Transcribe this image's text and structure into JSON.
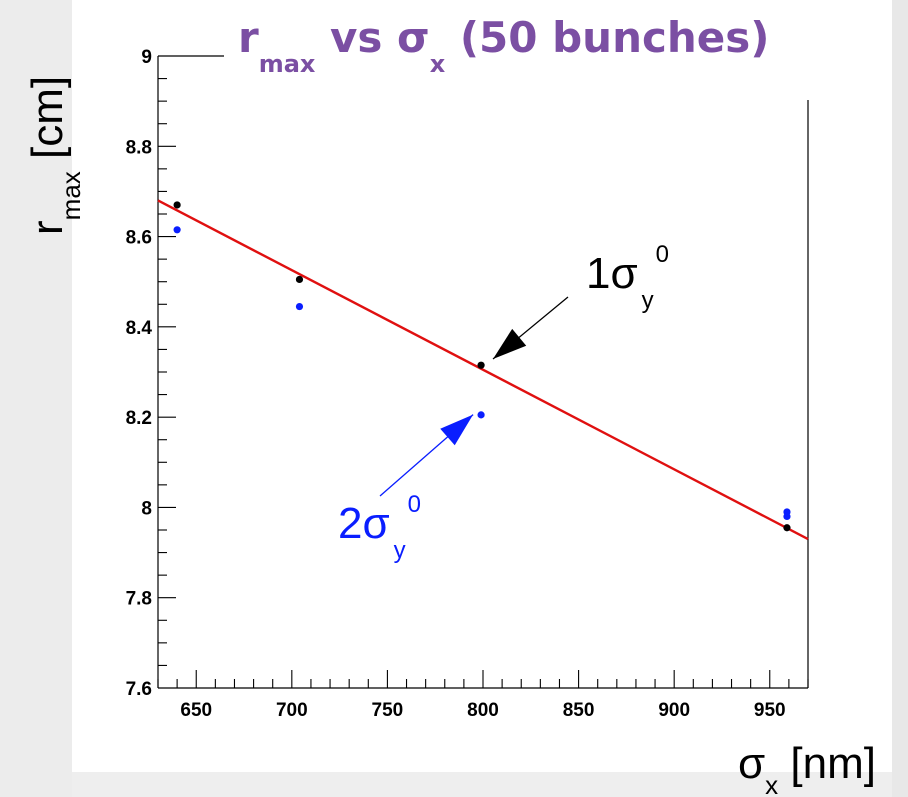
{
  "chart_data": {
    "type": "scatter",
    "title": {
      "main": "r",
      "main_sub": "max",
      "mid": " vs σ",
      "mid_sub": "x",
      "tail": " (50 bunches)"
    },
    "xlabel": {
      "sym": "σ",
      "sub": "x",
      "unit": " [nm]"
    },
    "ylabel": {
      "sym": "r",
      "sub": "max",
      "unit": " [cm]"
    },
    "xlim": [
      630,
      970
    ],
    "ylim": [
      7.6,
      9.0
    ],
    "x_ticks": [
      650,
      700,
      750,
      800,
      850,
      900,
      950
    ],
    "y_ticks": [
      7.6,
      7.8,
      8.0,
      8.2,
      8.4,
      8.6,
      8.8,
      9.0
    ],
    "x_tick_labels": [
      "650",
      "700",
      "750",
      "800",
      "850",
      "900",
      "950"
    ],
    "y_tick_labels": [
      "7.6",
      "7.8",
      "8",
      "8.2",
      "8.4",
      "8.6",
      "8.8",
      "9"
    ],
    "series": [
      {
        "color": "#000000",
        "points": [
          [
            640,
            8.67
          ],
          [
            704,
            8.505
          ],
          [
            799,
            8.315
          ],
          [
            959,
            7.955
          ]
        ]
      },
      {
        "color": "#0a1eff",
        "points": [
          [
            640,
            8.615
          ],
          [
            704,
            8.445
          ],
          [
            799,
            8.205
          ],
          [
            959,
            7.98
          ],
          [
            959,
            7.99
          ]
        ]
      }
    ],
    "fit_line": {
      "color": "#e01010",
      "x": [
        630,
        970
      ],
      "y": [
        8.68,
        7.93
      ]
    },
    "annotations": [
      {
        "id": "black",
        "color": "#000000",
        "main": "1σ",
        "sub": "y",
        "sup": "0",
        "target": [
          800,
          8.32
        ]
      },
      {
        "id": "blue",
        "color": "#0a1eff",
        "main": "2σ",
        "sub": "y",
        "sup": "0",
        "target": [
          799,
          8.21
        ]
      }
    ]
  }
}
